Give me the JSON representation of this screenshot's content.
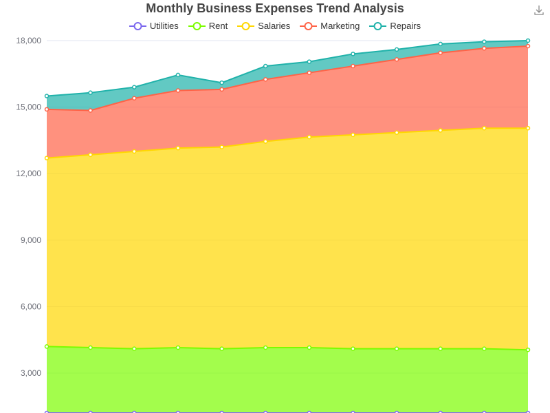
{
  "title": "Monthly Business Expenses Trend Analysis",
  "download_icon": "download-icon",
  "chart_data": {
    "type": "area",
    "stacked": true,
    "title": "Monthly Business Expenses Trend Analysis",
    "xlabel": "",
    "ylabel": "",
    "ylim": [
      1200,
      18000
    ],
    "yticks": [
      "3,000",
      "6,000",
      "9,000",
      "12,000",
      "15,000",
      "18,000"
    ],
    "ytick_values": [
      3000,
      6000,
      9000,
      12000,
      15000,
      18000
    ],
    "grid": true,
    "legend_position": "top-center",
    "series": [
      {
        "name": "Utilities",
        "color": "#7b68ee",
        "values": [
          1200,
          1200,
          1200,
          1200,
          1200,
          1200,
          1200,
          1200,
          1200,
          1200,
          1200,
          1200
        ]
      },
      {
        "name": "Rent",
        "color": "#7cfc00",
        "values": [
          3000,
          2950,
          2900,
          2950,
          2900,
          2950,
          2950,
          2900,
          2900,
          2900,
          2900,
          2850
        ]
      },
      {
        "name": "Salaries",
        "color": "#ffd700",
        "values": [
          8500,
          8700,
          8900,
          9000,
          9100,
          9300,
          9500,
          9650,
          9750,
          9850,
          9950,
          10000
        ]
      },
      {
        "name": "Marketing",
        "color": "#ff6347",
        "values": [
          2200,
          2000,
          2400,
          2600,
          2600,
          2800,
          2900,
          3100,
          3300,
          3500,
          3600,
          3700
        ]
      },
      {
        "name": "Repairs",
        "color": "#20b2aa",
        "values": [
          600,
          800,
          500,
          700,
          300,
          600,
          500,
          550,
          450,
          400,
          300,
          250
        ]
      }
    ]
  }
}
